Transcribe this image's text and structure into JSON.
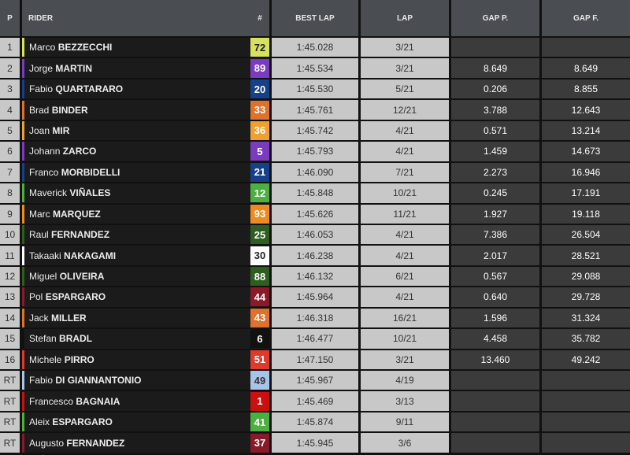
{
  "headers": {
    "p": "P",
    "rider": "RIDER",
    "num": "#",
    "best": "BEST LAP",
    "lap": "LAP",
    "gap_p": "GAP P.",
    "gap_f": "GAP F."
  },
  "rows": [
    {
      "p": "1",
      "first": "Marco",
      "last": "BEZZECCHI",
      "num": "72",
      "color": "#d6e25a",
      "text": "#222",
      "best": "1:45.028",
      "lap": "3/21",
      "gap_p": "",
      "gap_f": ""
    },
    {
      "p": "2",
      "first": "Jorge",
      "last": "MARTIN",
      "num": "89",
      "color": "#7b3bbf",
      "text": "#fff",
      "best": "1:45.534",
      "lap": "3/21",
      "gap_p": "8.649",
      "gap_f": "8.649"
    },
    {
      "p": "3",
      "first": "Fabio",
      "last": "QUARTARARO",
      "num": "20",
      "color": "#15408a",
      "text": "#fff",
      "best": "1:45.530",
      "lap": "5/21",
      "gap_p": "0.206",
      "gap_f": "8.855"
    },
    {
      "p": "4",
      "first": "Brad",
      "last": "BINDER",
      "num": "33",
      "color": "#e0702a",
      "text": "#fff",
      "best": "1:45.761",
      "lap": "12/21",
      "gap_p": "3.788",
      "gap_f": "12.643"
    },
    {
      "p": "5",
      "first": "Joan",
      "last": "MIR",
      "num": "36",
      "color": "#f0a030",
      "text": "#fff",
      "best": "1:45.742",
      "lap": "4/21",
      "gap_p": "0.571",
      "gap_f": "13.214"
    },
    {
      "p": "6",
      "first": "Johann",
      "last": "ZARCO",
      "num": "5",
      "color": "#7b3bbf",
      "text": "#fff",
      "best": "1:45.793",
      "lap": "4/21",
      "gap_p": "1.459",
      "gap_f": "14.673"
    },
    {
      "p": "7",
      "first": "Franco",
      "last": "MORBIDELLI",
      "num": "21",
      "color": "#15408a",
      "text": "#fff",
      "best": "1:46.090",
      "lap": "7/21",
      "gap_p": "2.273",
      "gap_f": "16.946"
    },
    {
      "p": "8",
      "first": "Maverick",
      "last": "VIÑALES",
      "num": "12",
      "color": "#4caf40",
      "text": "#fff",
      "best": "1:45.848",
      "lap": "10/21",
      "gap_p": "0.245",
      "gap_f": "17.191"
    },
    {
      "p": "9",
      "first": "Marc",
      "last": "MARQUEZ",
      "num": "93",
      "color": "#f08a20",
      "text": "#fff",
      "best": "1:45.626",
      "lap": "11/21",
      "gap_p": "1.927",
      "gap_f": "19.118"
    },
    {
      "p": "10",
      "first": "Raul",
      "last": "FERNANDEZ",
      "num": "25",
      "color": "#2e5e20",
      "text": "#fff",
      "best": "1:46.053",
      "lap": "4/21",
      "gap_p": "7.386",
      "gap_f": "26.504"
    },
    {
      "p": "11",
      "first": "Takaaki",
      "last": "NAKAGAMI",
      "num": "30",
      "color": "#ffffff",
      "text": "#222",
      "best": "1:46.238",
      "lap": "4/21",
      "gap_p": "2.017",
      "gap_f": "28.521"
    },
    {
      "p": "12",
      "first": "Miguel",
      "last": "OLIVEIRA",
      "num": "88",
      "color": "#2e5e20",
      "text": "#fff",
      "best": "1:46.132",
      "lap": "6/21",
      "gap_p": "0.567",
      "gap_f": "29.088"
    },
    {
      "p": "13",
      "first": "Pol",
      "last": "ESPARGARO",
      "num": "44",
      "color": "#8a1a2a",
      "text": "#fff",
      "best": "1:45.964",
      "lap": "4/21",
      "gap_p": "0.640",
      "gap_f": "29.728"
    },
    {
      "p": "14",
      "first": "Jack",
      "last": "MILLER",
      "num": "43",
      "color": "#e0702a",
      "text": "#fff",
      "best": "1:46.318",
      "lap": "16/21",
      "gap_p": "1.596",
      "gap_f": "31.324"
    },
    {
      "p": "15",
      "first": "Stefan",
      "last": "BRADL",
      "num": "6",
      "color": "#111111",
      "text": "#fff",
      "best": "1:46.477",
      "lap": "10/21",
      "gap_p": "4.458",
      "gap_f": "35.782"
    },
    {
      "p": "16",
      "first": "Michele",
      "last": "PIRRO",
      "num": "51",
      "color": "#e03a2a",
      "text": "#fff",
      "best": "1:47.150",
      "lap": "3/21",
      "gap_p": "13.460",
      "gap_f": "49.242"
    },
    {
      "p": "RT",
      "first": "Fabio",
      "last": "DI GIANNANTONIO",
      "num": "49",
      "color": "#a8c4e8",
      "text": "#333",
      "best": "1:45.967",
      "lap": "4/19",
      "gap_p": "",
      "gap_f": ""
    },
    {
      "p": "RT",
      "first": "Francesco",
      "last": "BAGNAIA",
      "num": "1",
      "color": "#cc1010",
      "text": "#fff",
      "best": "1:45.469",
      "lap": "3/13",
      "gap_p": "",
      "gap_f": ""
    },
    {
      "p": "RT",
      "first": "Aleix",
      "last": "ESPARGARO",
      "num": "41",
      "color": "#4caf40",
      "text": "#fff",
      "best": "1:45.874",
      "lap": "9/11",
      "gap_p": "",
      "gap_f": ""
    },
    {
      "p": "RT",
      "first": "Augusto",
      "last": "FERNANDEZ",
      "num": "37",
      "color": "#8a1a2a",
      "text": "#fff",
      "best": "1:45.945",
      "lap": "3/6",
      "gap_p": "",
      "gap_f": ""
    }
  ]
}
